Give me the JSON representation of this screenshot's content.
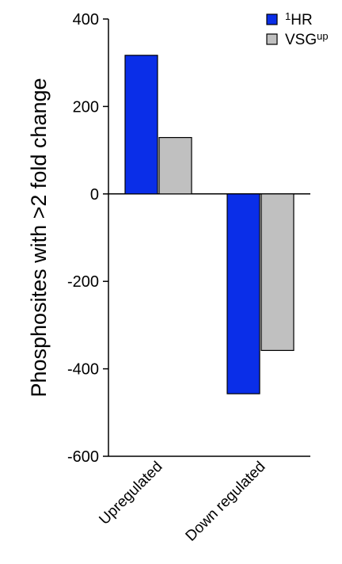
{
  "chart_data": {
    "type": "bar",
    "title": "",
    "xlabel": "",
    "ylabel": "Phosphosites with >2 fold change",
    "categories": [
      "Upregulated",
      "Down regulated"
    ],
    "series": [
      {
        "name": "HR",
        "name_prefix_sup": "1",
        "name_suffix_sup": "",
        "color": "#0a2ee8",
        "values": [
          317,
          -457
        ]
      },
      {
        "name": "VSG",
        "name_prefix_sup": "",
        "name_suffix_sup": "up",
        "color": "#c0c0c0",
        "values": [
          129,
          -358
        ]
      }
    ],
    "ylim": [
      -600,
      400
    ],
    "yticks": [
      -600,
      -400,
      -200,
      0,
      200,
      400
    ],
    "grid": false,
    "legend": "top-right"
  }
}
